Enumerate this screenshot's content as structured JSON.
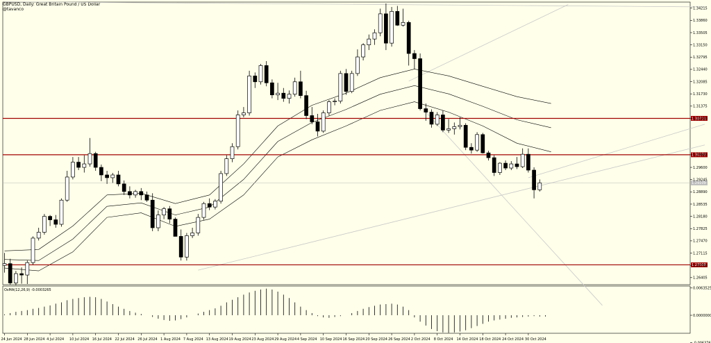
{
  "header": {
    "symbol_line": "GBPUSD, Daily:  Great Britain Pound / US Dollar",
    "author": "@tavanco"
  },
  "colors": {
    "background": "#ffffea",
    "candle": "#000000",
    "bull_body": "#ffffff",
    "bear_body": "#000000",
    "envelope": "#000000",
    "level": "#a00000",
    "trendline": "#c8c8c8"
  },
  "chart_data": [
    {
      "type": "candlestick",
      "title": "GBPUSD, Daily:  Great Britain Pound / US Dollar",
      "ylim": [
        1.262,
        1.3439
      ],
      "y_ticks": [
        "1.34215",
        "1.33860",
        "1.33505",
        "1.33150",
        "1.32795",
        "1.32440",
        "1.32085",
        "1.31730",
        "1.31375",
        "1.31020",
        "1.29965",
        "1.29600",
        "1.29245",
        "1.28890",
        "1.28535",
        "1.28180",
        "1.27825",
        "1.27470",
        "1.27115",
        "1.26760",
        "1.26405"
      ],
      "x_labels": [
        "24 Jun 2024",
        "28 Jun 2024",
        "4 Jul 2024",
        "10 Jul 2024",
        "16 Jul 2024",
        "22 Jul 2024",
        "26 Jul 2024",
        "1 Aug 2024",
        "7 Aug 2024",
        "13 Aug 2024",
        "19 Aug 2024",
        "23 Aug 2024",
        "29 Aug 2024",
        "4 Sep 2024",
        "10 Sep 2024",
        "16 Sep 2024",
        "20 Sep 2024",
        "26 Sep 2024",
        "2 Oct 2024",
        "8 Oct 2024",
        "14 Oct 2024",
        "18 Oct 2024",
        "24 Oct 2024",
        "30 Oct 2024"
      ],
      "candles": [
        {
          "o": 1.2676,
          "h": 1.2712,
          "l": 1.2655,
          "c": 1.2681
        },
        {
          "o": 1.2681,
          "h": 1.2695,
          "l": 1.262,
          "c": 1.2625
        },
        {
          "o": 1.2625,
          "h": 1.266,
          "l": 1.2618,
          "c": 1.2652
        },
        {
          "o": 1.2652,
          "h": 1.267,
          "l": 1.2623,
          "c": 1.2648
        },
        {
          "o": 1.2648,
          "h": 1.269,
          "l": 1.2622,
          "c": 1.2684
        },
        {
          "o": 1.2684,
          "h": 1.276,
          "l": 1.2678,
          "c": 1.2755
        },
        {
          "o": 1.2755,
          "h": 1.2785,
          "l": 1.2748,
          "c": 1.2772
        },
        {
          "o": 1.2772,
          "h": 1.2825,
          "l": 1.2765,
          "c": 1.2818
        },
        {
          "o": 1.2818,
          "h": 1.2822,
          "l": 1.279,
          "c": 1.2808
        },
        {
          "o": 1.2808,
          "h": 1.2822,
          "l": 1.2785,
          "c": 1.2795
        },
        {
          "o": 1.2795,
          "h": 1.287,
          "l": 1.2788,
          "c": 1.2865
        },
        {
          "o": 1.2865,
          "h": 1.295,
          "l": 1.286,
          "c": 1.2932
        },
        {
          "o": 1.2932,
          "h": 1.299,
          "l": 1.2925,
          "c": 1.2975
        },
        {
          "o": 1.2975,
          "h": 1.299,
          "l": 1.2952,
          "c": 1.296
        },
        {
          "o": 1.296,
          "h": 1.2995,
          "l": 1.2945,
          "c": 1.297
        },
        {
          "o": 1.297,
          "h": 1.3045,
          "l": 1.2962,
          "c": 1.3
        },
        {
          "o": 1.3,
          "h": 1.3005,
          "l": 1.295,
          "c": 1.296
        },
        {
          "o": 1.296,
          "h": 1.2968,
          "l": 1.292,
          "c": 1.2938
        },
        {
          "o": 1.2938,
          "h": 1.295,
          "l": 1.2912,
          "c": 1.293
        },
        {
          "o": 1.293,
          "h": 1.2944,
          "l": 1.2915,
          "c": 1.2938
        },
        {
          "o": 1.2938,
          "h": 1.295,
          "l": 1.2905,
          "c": 1.2912
        },
        {
          "o": 1.2912,
          "h": 1.2922,
          "l": 1.288,
          "c": 1.289
        },
        {
          "o": 1.289,
          "h": 1.2905,
          "l": 1.287,
          "c": 1.288
        },
        {
          "o": 1.288,
          "h": 1.2895,
          "l": 1.2872,
          "c": 1.289
        },
        {
          "o": 1.289,
          "h": 1.29,
          "l": 1.2865,
          "c": 1.288
        },
        {
          "o": 1.288,
          "h": 1.289,
          "l": 1.286,
          "c": 1.2865
        },
        {
          "o": 1.2865,
          "h": 1.2885,
          "l": 1.2775,
          "c": 1.2785
        },
        {
          "o": 1.2785,
          "h": 1.2835,
          "l": 1.2775,
          "c": 1.2822
        },
        {
          "o": 1.2822,
          "h": 1.2845,
          "l": 1.281,
          "c": 1.284
        },
        {
          "o": 1.284,
          "h": 1.2848,
          "l": 1.2798,
          "c": 1.281
        },
        {
          "o": 1.281,
          "h": 1.2815,
          "l": 1.276,
          "c": 1.276
        },
        {
          "o": 1.276,
          "h": 1.278,
          "l": 1.269,
          "c": 1.27
        },
        {
          "o": 1.27,
          "h": 1.277,
          "l": 1.269,
          "c": 1.2762
        },
        {
          "o": 1.2762,
          "h": 1.2785,
          "l": 1.2755,
          "c": 1.277
        },
        {
          "o": 1.277,
          "h": 1.2825,
          "l": 1.2762,
          "c": 1.2815
        },
        {
          "o": 1.2815,
          "h": 1.286,
          "l": 1.2808,
          "c": 1.2855
        },
        {
          "o": 1.2855,
          "h": 1.287,
          "l": 1.2836,
          "c": 1.2845
        },
        {
          "o": 1.2845,
          "h": 1.2868,
          "l": 1.2838,
          "c": 1.2862
        },
        {
          "o": 1.2862,
          "h": 1.295,
          "l": 1.2855,
          "c": 1.2942
        },
        {
          "o": 1.2942,
          "h": 1.2995,
          "l": 1.2935,
          "c": 1.2985
        },
        {
          "o": 1.2985,
          "h": 1.303,
          "l": 1.2975,
          "c": 1.302
        },
        {
          "o": 1.302,
          "h": 1.3125,
          "l": 1.3012,
          "c": 1.3112
        },
        {
          "o": 1.3112,
          "h": 1.3135,
          "l": 1.3105,
          "c": 1.3118
        },
        {
          "o": 1.3118,
          "h": 1.324,
          "l": 1.311,
          "c": 1.3225
        },
        {
          "o": 1.3225,
          "h": 1.3235,
          "l": 1.319,
          "c": 1.3208
        },
        {
          "o": 1.3208,
          "h": 1.326,
          "l": 1.32,
          "c": 1.3255
        },
        {
          "o": 1.3255,
          "h": 1.3268,
          "l": 1.3195,
          "c": 1.3205
        },
        {
          "o": 1.3205,
          "h": 1.3215,
          "l": 1.316,
          "c": 1.317
        },
        {
          "o": 1.317,
          "h": 1.3205,
          "l": 1.3155,
          "c": 1.3175
        },
        {
          "o": 1.3175,
          "h": 1.319,
          "l": 1.315,
          "c": 1.316
        },
        {
          "o": 1.316,
          "h": 1.3183,
          "l": 1.3145,
          "c": 1.3172
        },
        {
          "o": 1.3172,
          "h": 1.322,
          "l": 1.3165,
          "c": 1.3208
        },
        {
          "o": 1.3208,
          "h": 1.324,
          "l": 1.316,
          "c": 1.3168
        },
        {
          "o": 1.3168,
          "h": 1.3182,
          "l": 1.31,
          "c": 1.311
        },
        {
          "o": 1.311,
          "h": 1.3135,
          "l": 1.3085,
          "c": 1.3092
        },
        {
          "o": 1.3092,
          "h": 1.3115,
          "l": 1.305,
          "c": 1.3065
        },
        {
          "o": 1.3065,
          "h": 1.3125,
          "l": 1.306,
          "c": 1.3118
        },
        {
          "o": 1.3118,
          "h": 1.3155,
          "l": 1.311,
          "c": 1.315
        },
        {
          "o": 1.315,
          "h": 1.316,
          "l": 1.314,
          "c": 1.3152
        },
        {
          "o": 1.3152,
          "h": 1.324,
          "l": 1.3145,
          "c": 1.3232
        },
        {
          "o": 1.3232,
          "h": 1.3245,
          "l": 1.317,
          "c": 1.318
        },
        {
          "o": 1.318,
          "h": 1.324,
          "l": 1.3175,
          "c": 1.3232
        },
        {
          "o": 1.3232,
          "h": 1.3302,
          "l": 1.3225,
          "c": 1.328
        },
        {
          "o": 1.328,
          "h": 1.332,
          "l": 1.327,
          "c": 1.3315
        },
        {
          "o": 1.3315,
          "h": 1.3345,
          "l": 1.33,
          "c": 1.3332
        },
        {
          "o": 1.3332,
          "h": 1.336,
          "l": 1.3315,
          "c": 1.335
        },
        {
          "o": 1.335,
          "h": 1.342,
          "l": 1.334,
          "c": 1.3405
        },
        {
          "o": 1.3405,
          "h": 1.3435,
          "l": 1.33,
          "c": 1.332
        },
        {
          "o": 1.332,
          "h": 1.3425,
          "l": 1.331,
          "c": 1.3412
        },
        {
          "o": 1.3412,
          "h": 1.3428,
          "l": 1.337,
          "c": 1.3372
        },
        {
          "o": 1.3372,
          "h": 1.342,
          "l": 1.3368,
          "c": 1.338
        },
        {
          "o": 1.338,
          "h": 1.3385,
          "l": 1.3255,
          "c": 1.329
        },
        {
          "o": 1.329,
          "h": 1.33,
          "l": 1.3245,
          "c": 1.3275
        },
        {
          "o": 1.3275,
          "h": 1.329,
          "l": 1.3125,
          "c": 1.313
        },
        {
          "o": 1.313,
          "h": 1.3145,
          "l": 1.3095,
          "c": 1.312
        },
        {
          "o": 1.312,
          "h": 1.3128,
          "l": 1.3075,
          "c": 1.3085
        },
        {
          "o": 1.3085,
          "h": 1.312,
          "l": 1.308,
          "c": 1.3112
        },
        {
          "o": 1.3112,
          "h": 1.3125,
          "l": 1.3062,
          "c": 1.3068
        },
        {
          "o": 1.3068,
          "h": 1.31,
          "l": 1.306,
          "c": 1.3072
        },
        {
          "o": 1.3072,
          "h": 1.309,
          "l": 1.3055,
          "c": 1.3078
        },
        {
          "o": 1.3078,
          "h": 1.3105,
          "l": 1.307,
          "c": 1.3082
        },
        {
          "o": 1.3082,
          "h": 1.3088,
          "l": 1.301,
          "c": 1.3018
        },
        {
          "o": 1.3018,
          "h": 1.303,
          "l": 1.3,
          "c": 1.301
        },
        {
          "o": 1.301,
          "h": 1.3062,
          "l": 1.3005,
          "c": 1.3055
        },
        {
          "o": 1.3055,
          "h": 1.306,
          "l": 1.3,
          "c": 1.3002
        },
        {
          "o": 1.3002,
          "h": 1.3008,
          "l": 1.298,
          "c": 1.2988
        },
        {
          "o": 1.2988,
          "h": 1.2995,
          "l": 1.2935,
          "c": 1.2945
        },
        {
          "o": 1.2945,
          "h": 1.2975,
          "l": 1.2938,
          "c": 1.2972
        },
        {
          "o": 1.2972,
          "h": 1.298,
          "l": 1.2952,
          "c": 1.2958
        },
        {
          "o": 1.2958,
          "h": 1.2978,
          "l": 1.2952,
          "c": 1.297
        },
        {
          "o": 1.297,
          "h": 1.299,
          "l": 1.2955,
          "c": 1.2962
        },
        {
          "o": 1.2962,
          "h": 1.3015,
          "l": 1.2958,
          "c": 1.2998
        },
        {
          "o": 1.2998,
          "h": 1.3015,
          "l": 1.2945,
          "c": 1.2952
        },
        {
          "o": 1.2952,
          "h": 1.296,
          "l": 1.287,
          "c": 1.2895
        },
        {
          "o": 1.2895,
          "h": 1.2925,
          "l": 1.289,
          "c": 1.2915
        }
      ],
      "envelope_upper": [
        [
          0,
          1.2718
        ],
        [
          6,
          1.2722
        ],
        [
          12,
          1.279
        ],
        [
          18,
          1.288
        ],
        [
          24,
          1.2885
        ],
        [
          30,
          1.2855
        ],
        [
          36,
          1.288
        ],
        [
          42,
          1.297
        ],
        [
          48,
          1.308
        ],
        [
          54,
          1.314
        ],
        [
          60,
          1.3175
        ],
        [
          66,
          1.322
        ],
        [
          72,
          1.3245
        ],
        [
          78,
          1.3225
        ],
        [
          84,
          1.3195
        ],
        [
          90,
          1.3165
        ],
        [
          96,
          1.3145
        ]
      ],
      "envelope_mid": [
        [
          0,
          1.2693
        ],
        [
          6,
          1.269
        ],
        [
          12,
          1.2752
        ],
        [
          18,
          1.2847
        ],
        [
          24,
          1.2857
        ],
        [
          30,
          1.2822
        ],
        [
          36,
          1.2845
        ],
        [
          42,
          1.2925
        ],
        [
          48,
          1.3035
        ],
        [
          54,
          1.309
        ],
        [
          60,
          1.3128
        ],
        [
          66,
          1.3172
        ],
        [
          72,
          1.3197
        ],
        [
          78,
          1.3173
        ],
        [
          84,
          1.3137
        ],
        [
          90,
          1.3098
        ],
        [
          96,
          1.3075
        ]
      ],
      "envelope_lower": [
        [
          0,
          1.2668
        ],
        [
          6,
          1.266
        ],
        [
          12,
          1.2715
        ],
        [
          18,
          1.2815
        ],
        [
          24,
          1.2828
        ],
        [
          30,
          1.2789
        ],
        [
          36,
          1.281
        ],
        [
          42,
          1.288
        ],
        [
          48,
          1.299
        ],
        [
          54,
          1.304
        ],
        [
          60,
          1.308
        ],
        [
          66,
          1.3125
        ],
        [
          72,
          1.315
        ],
        [
          78,
          1.312
        ],
        [
          84,
          1.308
        ],
        [
          90,
          1.303
        ],
        [
          96,
          1.3005
        ]
      ],
      "levels": [
        {
          "price": 1.3102,
          "label": "1.30711"
        },
        {
          "price": 1.29965,
          "label": "1.30272"
        },
        {
          "price": 1.26775,
          "label": "1.27068"
        }
      ],
      "current_price_label": "1.29109",
      "trendlines": [
        {
          "from": [
            71,
            1.321
          ],
          "to": [
            99,
            1.3432
          ]
        },
        {
          "from": [
            0,
            1.344
          ],
          "to": [
            123,
            1.3425
          ]
        },
        {
          "from": [
            34,
            1.2662
          ],
          "to": [
            123,
            1.3025
          ]
        },
        {
          "from": [
            74,
            1.312
          ],
          "to": [
            105,
            1.256
          ]
        },
        {
          "from": [
            92,
            1.293
          ],
          "to": [
            123,
            1.3085
          ]
        }
      ]
    },
    {
      "type": "bar",
      "title": "OsMA(12,26,9)  -0.0003265",
      "ylim": [
        -0.0042,
        0.0068
      ],
      "y_ticks": [
        "0.0063525",
        "0.0000000",
        "-0.0063769"
      ],
      "values": [
        0.0002,
        0.0005,
        0.0008,
        0.001,
        0.0012,
        0.0015,
        0.0017,
        0.002,
        0.0023,
        0.0027,
        0.003,
        0.0035,
        0.0038,
        0.004,
        0.0042,
        0.0043,
        0.0042,
        0.0038,
        0.0032,
        0.0026,
        0.002,
        0.0015,
        0.001,
        0.0006,
        0.0003,
        0.0,
        -0.0004,
        -0.0008,
        -0.0011,
        -0.0013,
        -0.0012,
        -0.0009,
        -0.0005,
        0.0,
        0.0004,
        0.0008,
        0.0012,
        0.0016,
        0.0022,
        0.003,
        0.0036,
        0.0042,
        0.0048,
        0.0053,
        0.0057,
        0.006,
        0.0062,
        0.006,
        0.0055,
        0.0048,
        0.004,
        0.003,
        0.002,
        0.0012,
        0.0005,
        -0.0002,
        -0.0005,
        -0.0006,
        -0.0004,
        -0.0002,
        0.0,
        0.0005,
        0.001,
        0.0015,
        0.0019,
        0.0022,
        0.0025,
        0.0026,
        0.0027,
        0.0025,
        0.002,
        0.0012,
        -0.0005,
        -0.0015,
        -0.0024,
        -0.0032,
        -0.0037,
        -0.004,
        -0.0041,
        -0.004,
        -0.0038,
        -0.0035,
        -0.003,
        -0.0025,
        -0.002,
        -0.0015,
        -0.0012,
        -0.001,
        -0.0008,
        -0.0006,
        -0.0005,
        -0.0004,
        -0.0003,
        -0.0002,
        -0.0003,
        -0.0003
      ]
    }
  ]
}
